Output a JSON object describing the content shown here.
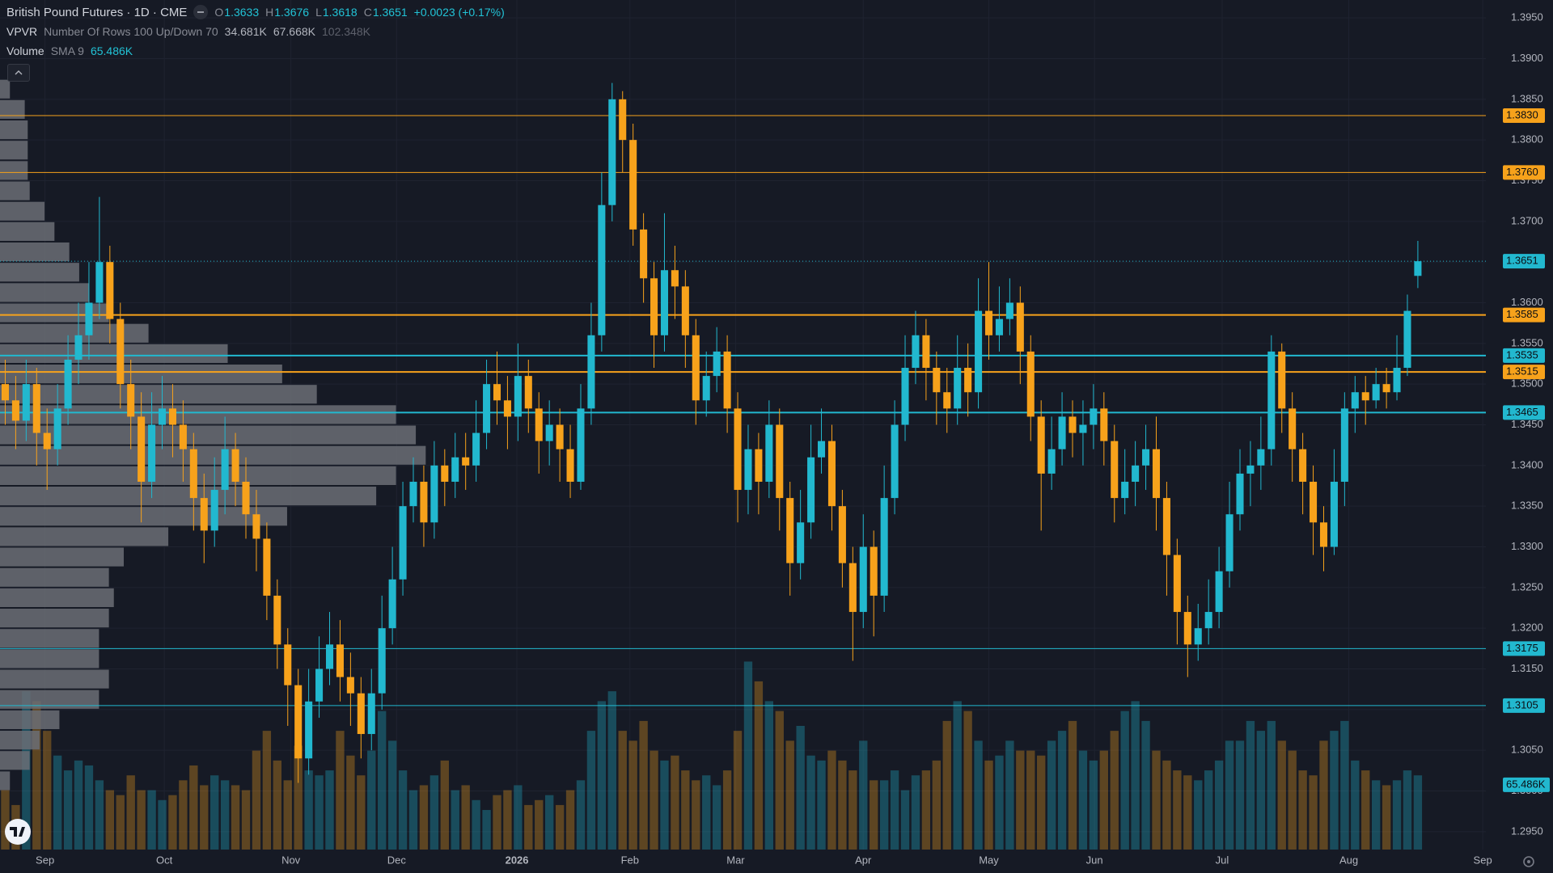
{
  "chart_data": {
    "type": "candlestick",
    "title": "British Pound Futures · 1D · CME",
    "ohlc_legend": [
      {
        "label": "O",
        "value": "1.3633"
      },
      {
        "label": "H",
        "value": "1.3676"
      },
      {
        "label": "L",
        "value": "1.3618"
      },
      {
        "label": "C",
        "value": "1.3651"
      }
    ],
    "change": "+0.0023 (+0.17%)",
    "vpvr_legend": {
      "name": "VPVR",
      "settings": "Number Of Rows 100 Up/Down 70",
      "values": [
        "34.681K",
        "67.668K",
        "102.348K"
      ]
    },
    "volume_legend": {
      "name": "Volume",
      "settings": "SMA 9",
      "value": "65.486K"
    },
    "up_color": "#22b8cf",
    "down_color": "#f7a21b",
    "xlim": [
      -0.5,
      141.5
    ],
    "xticks": [
      {
        "value": 3.8,
        "label": "Sep"
      },
      {
        "value": 15.2,
        "label": "Oct"
      },
      {
        "value": 27.3,
        "label": "Nov"
      },
      {
        "value": 37.4,
        "label": "Dec"
      },
      {
        "value": 48.9,
        "label": "2026",
        "emphasis": true
      },
      {
        "value": 59.7,
        "label": "Feb"
      },
      {
        "value": 69.8,
        "label": "Mar"
      },
      {
        "value": 82,
        "label": "Apr"
      },
      {
        "value": 94,
        "label": "May"
      },
      {
        "value": 104.1,
        "label": "Jun"
      },
      {
        "value": 116.3,
        "label": "Jul"
      },
      {
        "value": 128.4,
        "label": "Aug"
      },
      {
        "value": 141.2,
        "label": "Sep"
      }
    ],
    "ylim": [
      1.2928,
      1.3972
    ],
    "yticks": [
      {
        "value": 1.295,
        "label": "1.2950"
      },
      {
        "value": 1.3,
        "label": "1.3000"
      },
      {
        "value": 1.305,
        "label": "1.3050"
      },
      {
        "value": 1.31,
        "label": "1.3100"
      },
      {
        "value": 1.315,
        "label": "1.3150"
      },
      {
        "value": 1.32,
        "label": "1.3200"
      },
      {
        "value": 1.325,
        "label": "1.3250"
      },
      {
        "value": 1.33,
        "label": "1.3300"
      },
      {
        "value": 1.335,
        "label": "1.3350"
      },
      {
        "value": 1.34,
        "label": "1.3400"
      },
      {
        "value": 1.345,
        "label": "1.3450"
      },
      {
        "value": 1.35,
        "label": "1.3500"
      },
      {
        "value": 1.355,
        "label": "1.3550"
      },
      {
        "value": 1.36,
        "label": "1.3600"
      },
      {
        "value": 1.365,
        "label": "1.3650"
      },
      {
        "value": 1.37,
        "label": "1.3700"
      },
      {
        "value": 1.375,
        "label": "1.3750"
      },
      {
        "value": 1.38,
        "label": "1.3800"
      },
      {
        "value": 1.385,
        "label": "1.3850"
      },
      {
        "value": 1.39,
        "label": "1.3900"
      },
      {
        "value": 1.395,
        "label": "1.3950"
      }
    ],
    "grid": true,
    "open": [
      1.35,
      1.348,
      1.3455,
      1.35,
      1.344,
      1.342,
      1.347,
      1.353,
      1.356,
      1.36,
      1.365,
      1.358,
      1.35,
      1.346,
      1.338,
      1.345,
      1.347,
      1.345,
      1.342,
      1.336,
      1.332,
      1.337,
      1.342,
      1.338,
      1.334,
      1.331,
      1.324,
      1.318,
      1.313,
      1.304,
      1.311,
      1.315,
      1.318,
      1.314,
      1.312,
      1.307,
      1.312,
      1.32,
      1.326,
      1.335,
      1.338,
      1.333,
      1.34,
      1.338,
      1.341,
      1.34,
      1.344,
      1.35,
      1.348,
      1.346,
      1.351,
      1.347,
      1.343,
      1.345,
      1.342,
      1.338,
      1.347,
      1.356,
      1.372,
      1.385,
      1.38,
      1.369,
      1.363,
      1.356,
      1.364,
      1.362,
      1.356,
      1.348,
      1.351,
      1.354,
      1.347,
      1.337,
      1.342,
      1.338,
      1.345,
      1.336,
      1.328,
      1.333,
      1.341,
      1.343,
      1.335,
      1.328,
      1.322,
      1.33,
      1.324,
      1.336,
      1.345,
      1.352,
      1.356,
      1.352,
      1.349,
      1.347,
      1.352,
      1.349,
      1.359,
      1.356,
      1.358,
      1.36,
      1.354,
      1.346,
      1.339,
      1.342,
      1.346,
      1.344,
      1.345,
      1.347,
      1.343,
      1.336,
      1.338,
      1.34,
      1.342,
      1.336,
      1.329,
      1.322,
      1.318,
      1.32,
      1.322,
      1.327,
      1.334,
      1.339,
      1.34,
      1.342,
      1.354,
      1.347,
      1.342,
      1.338,
      1.333,
      1.33,
      1.338,
      1.347,
      1.349,
      1.348,
      1.35,
      1.349,
      1.352,
      1.3633
    ],
    "high": [
      1.353,
      1.351,
      1.353,
      1.352,
      1.347,
      1.35,
      1.356,
      1.36,
      1.365,
      1.373,
      1.367,
      1.36,
      1.353,
      1.349,
      1.349,
      1.351,
      1.35,
      1.348,
      1.344,
      1.339,
      1.341,
      1.346,
      1.344,
      1.341,
      1.337,
      1.333,
      1.326,
      1.32,
      1.315,
      1.315,
      1.319,
      1.322,
      1.321,
      1.317,
      1.314,
      1.315,
      1.324,
      1.33,
      1.338,
      1.341,
      1.34,
      1.343,
      1.342,
      1.344,
      1.344,
      1.348,
      1.353,
      1.354,
      1.351,
      1.355,
      1.353,
      1.349,
      1.348,
      1.347,
      1.345,
      1.35,
      1.36,
      1.376,
      1.387,
      1.386,
      1.382,
      1.371,
      1.365,
      1.371,
      1.367,
      1.364,
      1.358,
      1.354,
      1.357,
      1.356,
      1.349,
      1.345,
      1.344,
      1.348,
      1.347,
      1.338,
      1.337,
      1.345,
      1.347,
      1.345,
      1.337,
      1.33,
      1.334,
      1.332,
      1.34,
      1.348,
      1.356,
      1.359,
      1.358,
      1.354,
      1.352,
      1.356,
      1.355,
      1.363,
      1.365,
      1.362,
      1.363,
      1.362,
      1.356,
      1.348,
      1.346,
      1.349,
      1.348,
      1.348,
      1.35,
      1.349,
      1.345,
      1.342,
      1.343,
      1.345,
      1.346,
      1.338,
      1.331,
      1.324,
      1.323,
      1.326,
      1.33,
      1.338,
      1.342,
      1.343,
      1.346,
      1.356,
      1.355,
      1.349,
      1.344,
      1.34,
      1.335,
      1.342,
      1.349,
      1.351,
      1.351,
      1.352,
      1.352,
      1.356,
      1.361,
      1.3676
    ],
    "low": [
      1.345,
      1.342,
      1.343,
      1.34,
      1.337,
      1.34,
      1.345,
      1.35,
      1.353,
      1.358,
      1.355,
      1.347,
      1.342,
      1.333,
      1.336,
      1.342,
      1.341,
      1.338,
      1.332,
      1.328,
      1.33,
      1.334,
      1.335,
      1.331,
      1.327,
      1.321,
      1.315,
      1.308,
      1.301,
      1.302,
      1.309,
      1.313,
      1.311,
      1.308,
      1.304,
      1.305,
      1.31,
      1.318,
      1.324,
      1.333,
      1.33,
      1.331,
      1.335,
      1.336,
      1.337,
      1.338,
      1.342,
      1.345,
      1.342,
      1.343,
      1.344,
      1.339,
      1.34,
      1.338,
      1.336,
      1.337,
      1.345,
      1.354,
      1.37,
      1.376,
      1.367,
      1.36,
      1.352,
      1.354,
      1.358,
      1.352,
      1.345,
      1.346,
      1.349,
      1.344,
      1.333,
      1.334,
      1.334,
      1.336,
      1.332,
      1.324,
      1.326,
      1.331,
      1.339,
      1.332,
      1.325,
      1.316,
      1.32,
      1.319,
      1.322,
      1.334,
      1.343,
      1.35,
      1.348,
      1.345,
      1.344,
      1.345,
      1.346,
      1.347,
      1.353,
      1.354,
      1.356,
      1.35,
      1.343,
      1.332,
      1.337,
      1.34,
      1.341,
      1.34,
      1.342,
      1.34,
      1.333,
      1.334,
      1.335,
      1.337,
      1.332,
      1.324,
      1.318,
      1.314,
      1.316,
      1.318,
      1.32,
      1.325,
      1.332,
      1.335,
      1.337,
      1.34,
      1.344,
      1.338,
      1.334,
      1.329,
      1.327,
      1.329,
      1.335,
      1.344,
      1.345,
      1.347,
      1.347,
      1.348,
      1.351,
      1.3618
    ],
    "close": [
      1.348,
      1.3455,
      1.35,
      1.344,
      1.342,
      1.347,
      1.353,
      1.356,
      1.36,
      1.365,
      1.358,
      1.35,
      1.346,
      1.338,
      1.345,
      1.347,
      1.345,
      1.342,
      1.336,
      1.332,
      1.337,
      1.342,
      1.338,
      1.334,
      1.331,
      1.324,
      1.318,
      1.313,
      1.304,
      1.311,
      1.315,
      1.318,
      1.314,
      1.312,
      1.307,
      1.312,
      1.32,
      1.326,
      1.335,
      1.338,
      1.333,
      1.34,
      1.338,
      1.341,
      1.34,
      1.344,
      1.35,
      1.348,
      1.346,
      1.351,
      1.347,
      1.343,
      1.345,
      1.342,
      1.338,
      1.347,
      1.356,
      1.372,
      1.385,
      1.38,
      1.369,
      1.363,
      1.356,
      1.364,
      1.362,
      1.356,
      1.348,
      1.351,
      1.354,
      1.347,
      1.337,
      1.342,
      1.338,
      1.345,
      1.336,
      1.328,
      1.333,
      1.341,
      1.343,
      1.335,
      1.328,
      1.322,
      1.33,
      1.324,
      1.336,
      1.345,
      1.352,
      1.356,
      1.352,
      1.349,
      1.347,
      1.352,
      1.349,
      1.359,
      1.356,
      1.358,
      1.36,
      1.354,
      1.346,
      1.339,
      1.342,
      1.346,
      1.344,
      1.345,
      1.347,
      1.343,
      1.336,
      1.338,
      1.34,
      1.342,
      1.336,
      1.329,
      1.322,
      1.318,
      1.32,
      1.322,
      1.327,
      1.334,
      1.339,
      1.34,
      1.342,
      1.354,
      1.347,
      1.342,
      1.338,
      1.333,
      1.33,
      1.338,
      1.347,
      1.349,
      1.348,
      1.35,
      1.349,
      1.352,
      1.359,
      1.3651
    ],
    "volume": [
      60,
      45,
      160,
      150,
      120,
      95,
      80,
      90,
      85,
      70,
      60,
      55,
      75,
      60,
      60,
      50,
      55,
      70,
      85,
      65,
      75,
      70,
      65,
      60,
      100,
      120,
      90,
      70,
      105,
      80,
      75,
      80,
      120,
      95,
      75,
      100,
      140,
      110,
      80,
      60,
      65,
      75,
      90,
      60,
      65,
      50,
      40,
      55,
      60,
      65,
      45,
      50,
      55,
      45,
      60,
      70,
      120,
      150,
      160,
      120,
      110,
      130,
      100,
      90,
      95,
      80,
      70,
      75,
      65,
      80,
      120,
      190,
      170,
      150,
      140,
      110,
      125,
      95,
      90,
      100,
      90,
      80,
      110,
      70,
      70,
      80,
      60,
      75,
      80,
      90,
      130,
      150,
      140,
      110,
      90,
      95,
      110,
      100,
      100,
      95,
      110,
      120,
      130,
      100,
      90,
      100,
      120,
      140,
      150,
      130,
      100,
      90,
      80,
      75,
      70,
      80,
      90,
      110,
      110,
      130,
      120,
      130,
      110,
      100,
      80,
      75,
      110,
      120,
      130,
      90,
      80,
      70,
      65,
      70,
      80,
      75
    ],
    "volume_lim": [
      0,
      250
    ],
    "volume_sma": {
      "value": 65.486,
      "label": "65.486K"
    },
    "profile": {
      "price_bins": [
        1.3,
        1.3025,
        1.305,
        1.3075,
        1.31,
        1.3125,
        1.315,
        1.3175,
        1.32,
        1.3225,
        1.325,
        1.3275,
        1.33,
        1.3325,
        1.335,
        1.3375,
        1.34,
        1.3425,
        1.345,
        1.3475,
        1.35,
        1.3525,
        1.355,
        1.3575,
        1.36,
        1.3625,
        1.365,
        1.3675,
        1.37,
        1.3725,
        1.375,
        1.3775,
        1.38,
        1.3825,
        1.385,
        1.3875
      ],
      "volumes": [
        10,
        30,
        40,
        60,
        100,
        110,
        100,
        100,
        110,
        115,
        110,
        125,
        170,
        290,
        380,
        400,
        430,
        420,
        400,
        320,
        285,
        230,
        150,
        110,
        90,
        80,
        70,
        55,
        45,
        30,
        28,
        28,
        28,
        25,
        10
      ],
      "lim": [
        0,
        1000
      ],
      "color": "#6b6e76"
    },
    "levels": [
      {
        "value": 1.383,
        "label": "1.3830",
        "color": "#f7a21b",
        "width": 1
      },
      {
        "value": 1.376,
        "label": "1.3760",
        "color": "#f7a21b",
        "width": 1
      },
      {
        "value": 1.3585,
        "label": "1.3585",
        "color": "#f7a21b",
        "width": 2
      },
      {
        "value": 1.3535,
        "label": "1.3535",
        "color": "#22b8cf",
        "width": 2
      },
      {
        "value": 1.3515,
        "label": "1.3515",
        "color": "#f7a21b",
        "width": 2
      },
      {
        "value": 1.3465,
        "label": "1.3465",
        "color": "#22b8cf",
        "width": 2
      },
      {
        "value": 1.3175,
        "label": "1.3175",
        "color": "#22b8cf",
        "width": 1
      },
      {
        "value": 1.3105,
        "label": "1.3105",
        "color": "#22b8cf",
        "width": 1
      }
    ],
    "last_price": {
      "value": 1.3651,
      "label": "1.3651",
      "color": "#22b8cf"
    }
  }
}
